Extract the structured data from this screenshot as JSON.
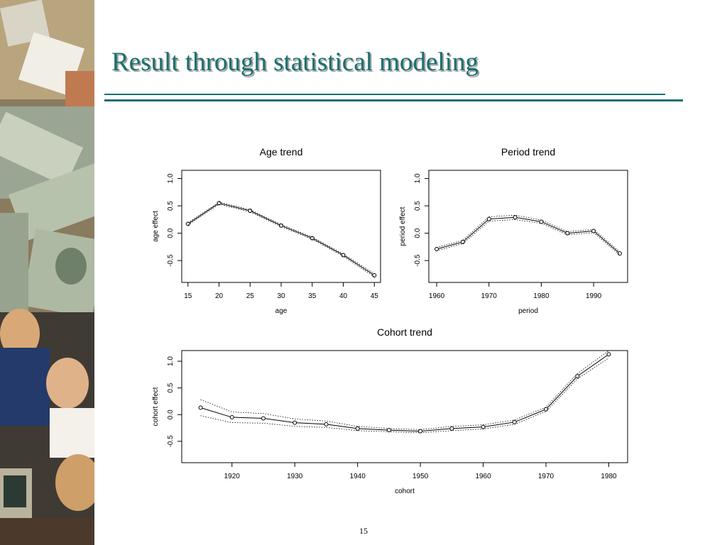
{
  "slide": {
    "title": "Result through statistical modeling",
    "page_number": "15",
    "accent_color": "#1a6f6f"
  },
  "chart_data": [
    {
      "type": "line",
      "title": "Age trend",
      "xlabel": "age",
      "ylabel": "age effect",
      "x": [
        15,
        20,
        25,
        30,
        35,
        40,
        45
      ],
      "series": [
        {
          "values": [
            0.17,
            0.55,
            0.41,
            0.14,
            -0.09,
            -0.4,
            -0.77
          ]
        },
        {
          "style": "dotted",
          "values": [
            0.19,
            0.57,
            0.43,
            0.16,
            -0.07,
            -0.38,
            -0.74
          ]
        },
        {
          "style": "dotted",
          "values": [
            0.15,
            0.53,
            0.39,
            0.12,
            -0.11,
            -0.42,
            -0.8
          ]
        }
      ],
      "xlim": [
        14,
        46
      ],
      "ylim": [
        -0.9,
        1.15
      ],
      "xticks": [
        15,
        20,
        25,
        30,
        35,
        40,
        45
      ],
      "yticks": [
        -0.5,
        0.0,
        0.5,
        1.0
      ],
      "xtick_labels": [
        "15",
        "20",
        "25",
        "30",
        "35",
        "40",
        "45"
      ],
      "ytick_labels": [
        "-0.5",
        "0.0",
        "0.5",
        "1.0"
      ],
      "grid": false,
      "markers": "open-circle"
    },
    {
      "type": "line",
      "title": "Period trend",
      "xlabel": "period",
      "ylabel": "period effect",
      "x": [
        1960,
        1965,
        1970,
        1975,
        1980,
        1985,
        1990,
        1995
      ],
      "series": [
        {
          "values": [
            -0.29,
            -0.16,
            0.26,
            0.29,
            0.21,
            0.0,
            0.04,
            -0.37
          ]
        },
        {
          "style": "dotted",
          "values": [
            -0.26,
            -0.13,
            0.3,
            0.33,
            0.24,
            0.03,
            0.07,
            -0.34
          ]
        },
        {
          "style": "dotted",
          "values": [
            -0.32,
            -0.19,
            0.22,
            0.25,
            0.18,
            -0.03,
            0.01,
            -0.4
          ]
        }
      ],
      "xlim": [
        1958.5,
        1996.5
      ],
      "ylim": [
        -0.9,
        1.15
      ],
      "xticks": [
        1960,
        1970,
        1980,
        1990
      ],
      "yticks": [
        -0.5,
        0.0,
        0.5,
        1.0
      ],
      "xtick_labels": [
        "1960",
        "1970",
        "1980",
        "1990"
      ],
      "ytick_labels": [
        "-0.5",
        "0.0",
        "0.5",
        "1.0"
      ],
      "grid": false,
      "markers": "open-circle"
    },
    {
      "type": "line",
      "title": "Cohort trend",
      "xlabel": "cohort",
      "ylabel": "cohort effect",
      "x": [
        1915,
        1920,
        1925,
        1930,
        1935,
        1940,
        1945,
        1950,
        1955,
        1960,
        1965,
        1970,
        1975,
        1980
      ],
      "series": [
        {
          "values": [
            0.13,
            -0.05,
            -0.07,
            -0.15,
            -0.18,
            -0.26,
            -0.29,
            -0.31,
            -0.26,
            -0.23,
            -0.14,
            0.1,
            0.72,
            1.13
          ]
        },
        {
          "style": "dotted",
          "values": [
            0.28,
            0.05,
            0.02,
            -0.08,
            -0.12,
            -0.22,
            -0.26,
            -0.28,
            -0.22,
            -0.19,
            -0.1,
            0.14,
            0.77,
            1.2
          ]
        },
        {
          "style": "dotted",
          "values": [
            -0.02,
            -0.15,
            -0.16,
            -0.22,
            -0.24,
            -0.3,
            -0.32,
            -0.34,
            -0.3,
            -0.27,
            -0.18,
            0.06,
            0.67,
            1.06
          ]
        }
      ],
      "xlim": [
        1912,
        1983
      ],
      "ylim": [
        -0.9,
        1.2
      ],
      "xticks": [
        1920,
        1930,
        1940,
        1950,
        1960,
        1970,
        1980
      ],
      "yticks": [
        -0.5,
        0.0,
        0.5,
        1.0
      ],
      "xtick_labels": [
        "1920",
        "1930",
        "1940",
        "1950",
        "1960",
        "1970",
        "1980"
      ],
      "ytick_labels": [
        "-0.5",
        "0.0",
        "0.5",
        "1.0"
      ],
      "grid": false,
      "markers": "open-circle"
    }
  ]
}
